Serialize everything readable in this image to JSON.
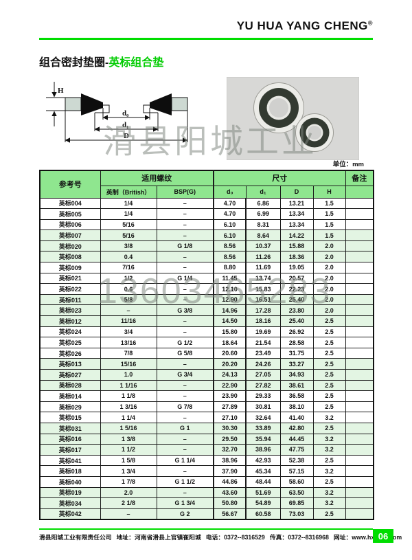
{
  "brand": {
    "name": "YU HUA YANG CHENG",
    "mark": "®"
  },
  "page_title": {
    "black": "组合密封垫圈-",
    "green": "英标组合垫"
  },
  "diagram": {
    "labels": {
      "h": "H",
      "d0": "d₀",
      "d1": "d₁",
      "D": "D"
    }
  },
  "watermarks": {
    "company_text": "滑县阳城工业",
    "phone_text": "13603465283"
  },
  "unit_note": "单位：mm",
  "table": {
    "header": {
      "ref": "参考号",
      "thread_group": "适用螺纹",
      "size_group": "尺寸",
      "remark": "备注",
      "sub": {
        "british": "英制（British）",
        "bsp": "BSP(G)",
        "d0": "d₀",
        "d1": "d₁",
        "D": "D",
        "H": "H"
      }
    },
    "rows": [
      {
        "ref": "英标004",
        "british": "1/4",
        "bsp": "–",
        "d0": "4.70",
        "d1": "6.86",
        "D": "13.21",
        "H": "1.5",
        "remark": ""
      },
      {
        "ref": "英标005",
        "british": "1/4",
        "bsp": "–",
        "d0": "4.70",
        "d1": "6.99",
        "D": "13.34",
        "H": "1.5",
        "remark": ""
      },
      {
        "ref": "英标006",
        "british": "5/16",
        "bsp": "–",
        "d0": "6.10",
        "d1": "8.31",
        "D": "13.34",
        "H": "1.5",
        "remark": ""
      },
      {
        "ref": "英标007",
        "british": "5/16",
        "bsp": "–",
        "d0": "6.10",
        "d1": "8.64",
        "D": "14.22",
        "H": "1.5",
        "remark": ""
      },
      {
        "ref": "英标020",
        "british": "3/8",
        "bsp": "G 1/8",
        "d0": "8.56",
        "d1": "10.37",
        "D": "15.88",
        "H": "2.0",
        "remark": ""
      },
      {
        "ref": "英标008",
        "british": "0.4",
        "bsp": "–",
        "d0": "8.56",
        "d1": "11.26",
        "D": "18.36",
        "H": "2.0",
        "remark": ""
      },
      {
        "ref": "英标009",
        "british": "7/16",
        "bsp": "–",
        "d0": "8.80",
        "d1": "11.69",
        "D": "19.05",
        "H": "2.0",
        "remark": ""
      },
      {
        "ref": "英标021",
        "british": "1/2",
        "bsp": "G 1/4",
        "d0": "11.45",
        "d1": "13.74",
        "D": "20.57",
        "H": "2.0",
        "remark": ""
      },
      {
        "ref": "英标022",
        "british": "0.6",
        "bsp": "–",
        "d0": "12.10",
        "d1": "15.83",
        "D": "22.23",
        "H": "2.0",
        "remark": ""
      },
      {
        "ref": "英标011",
        "british": "5/8",
        "bsp": "–",
        "d0": "12.90",
        "d1": "16.51",
        "D": "25.40",
        "H": "2.0",
        "remark": ""
      },
      {
        "ref": "英标023",
        "british": "–",
        "bsp": "G 3/8",
        "d0": "14.96",
        "d1": "17.28",
        "D": "23.80",
        "H": "2.0",
        "remark": ""
      },
      {
        "ref": "英标012",
        "british": "11/16",
        "bsp": "–",
        "d0": "14.50",
        "d1": "18.16",
        "D": "25.40",
        "H": "2.5",
        "remark": ""
      },
      {
        "ref": "英标024",
        "british": "3/4",
        "bsp": "–",
        "d0": "15.80",
        "d1": "19.69",
        "D": "26.92",
        "H": "2.5",
        "remark": ""
      },
      {
        "ref": "英标025",
        "british": "13/16",
        "bsp": "G 1/2",
        "d0": "18.64",
        "d1": "21.54",
        "D": "28.58",
        "H": "2.5",
        "remark": ""
      },
      {
        "ref": "英标026",
        "british": "7/8",
        "bsp": "G 5/8",
        "d0": "20.60",
        "d1": "23.49",
        "D": "31.75",
        "H": "2.5",
        "remark": ""
      },
      {
        "ref": "英标013",
        "british": "15/16",
        "bsp": "–",
        "d0": "20.20",
        "d1": "24.26",
        "D": "33.27",
        "H": "2.5",
        "remark": ""
      },
      {
        "ref": "英标027",
        "british": "1.0",
        "bsp": "G 3/4",
        "d0": "24.13",
        "d1": "27.05",
        "D": "34.93",
        "H": "2.5",
        "remark": ""
      },
      {
        "ref": "英标028",
        "british": "1 1/16",
        "bsp": "–",
        "d0": "22.90",
        "d1": "27.82",
        "D": "38.61",
        "H": "2.5",
        "remark": ""
      },
      {
        "ref": "英标014",
        "british": "1 1/8",
        "bsp": "–",
        "d0": "23.90",
        "d1": "29.33",
        "D": "36.58",
        "H": "2.5",
        "remark": ""
      },
      {
        "ref": "英标029",
        "british": "1 3/16",
        "bsp": "G 7/8",
        "d0": "27.89",
        "d1": "30.81",
        "D": "38.10",
        "H": "2.5",
        "remark": ""
      },
      {
        "ref": "英标015",
        "british": "1 1/4",
        "bsp": "–",
        "d0": "27.10",
        "d1": "32.64",
        "D": "41.40",
        "H": "3.2",
        "remark": ""
      },
      {
        "ref": "英标031",
        "british": "1 5/16",
        "bsp": "G 1",
        "d0": "30.30",
        "d1": "33.89",
        "D": "42.80",
        "H": "2.5",
        "remark": ""
      },
      {
        "ref": "英标016",
        "british": "1 3/8",
        "bsp": "–",
        "d0": "29.50",
        "d1": "35.94",
        "D": "44.45",
        "H": "3.2",
        "remark": ""
      },
      {
        "ref": "英标017",
        "british": "1 1/2",
        "bsp": "–",
        "d0": "32.70",
        "d1": "38.96",
        "D": "47.75",
        "H": "3.2",
        "remark": ""
      },
      {
        "ref": "英标041",
        "british": "1 5/8",
        "bsp": "G 1 1/4",
        "d0": "38.96",
        "d1": "42.93",
        "D": "52.38",
        "H": "2.5",
        "remark": ""
      },
      {
        "ref": "英标018",
        "british": "1 3/4",
        "bsp": "–",
        "d0": "37.90",
        "d1": "45.34",
        "D": "57.15",
        "H": "3.2",
        "remark": ""
      },
      {
        "ref": "英标040",
        "british": "1 7/8",
        "bsp": "G 1 1/2",
        "d0": "44.86",
        "d1": "48.44",
        "D": "58.60",
        "H": "2.5",
        "remark": ""
      },
      {
        "ref": "英标019",
        "british": "2.0",
        "bsp": "–",
        "d0": "43.60",
        "d1": "51.69",
        "D": "63.50",
        "H": "3.2",
        "remark": ""
      },
      {
        "ref": "英标034",
        "british": "2 1/8",
        "bsp": "G 1 3/4",
        "d0": "50.80",
        "d1": "54.89",
        "D": "69.85",
        "H": "3.2",
        "remark": ""
      },
      {
        "ref": "英标042",
        "british": "–",
        "bsp": "G 2",
        "d0": "56.67",
        "d1": "60.58",
        "D": "73.03",
        "H": "2.5",
        "remark": ""
      }
    ]
  },
  "footer": {
    "company": "滑县阳城工业有限责任公司",
    "address": "地址：河南省滑县上官镇崔阳城",
    "phone": "电话：0372--8316529",
    "fax": "传真：0372--8316968",
    "website": "网址：www.hxycgy.com",
    "page_number": "06"
  },
  "colors": {
    "accent_green": "#00dd00",
    "title_green": "#00cc00",
    "table_header_green": "#8fe68f",
    "row_green": "#e3f5e3",
    "photo_background": "#d8d8d6"
  }
}
